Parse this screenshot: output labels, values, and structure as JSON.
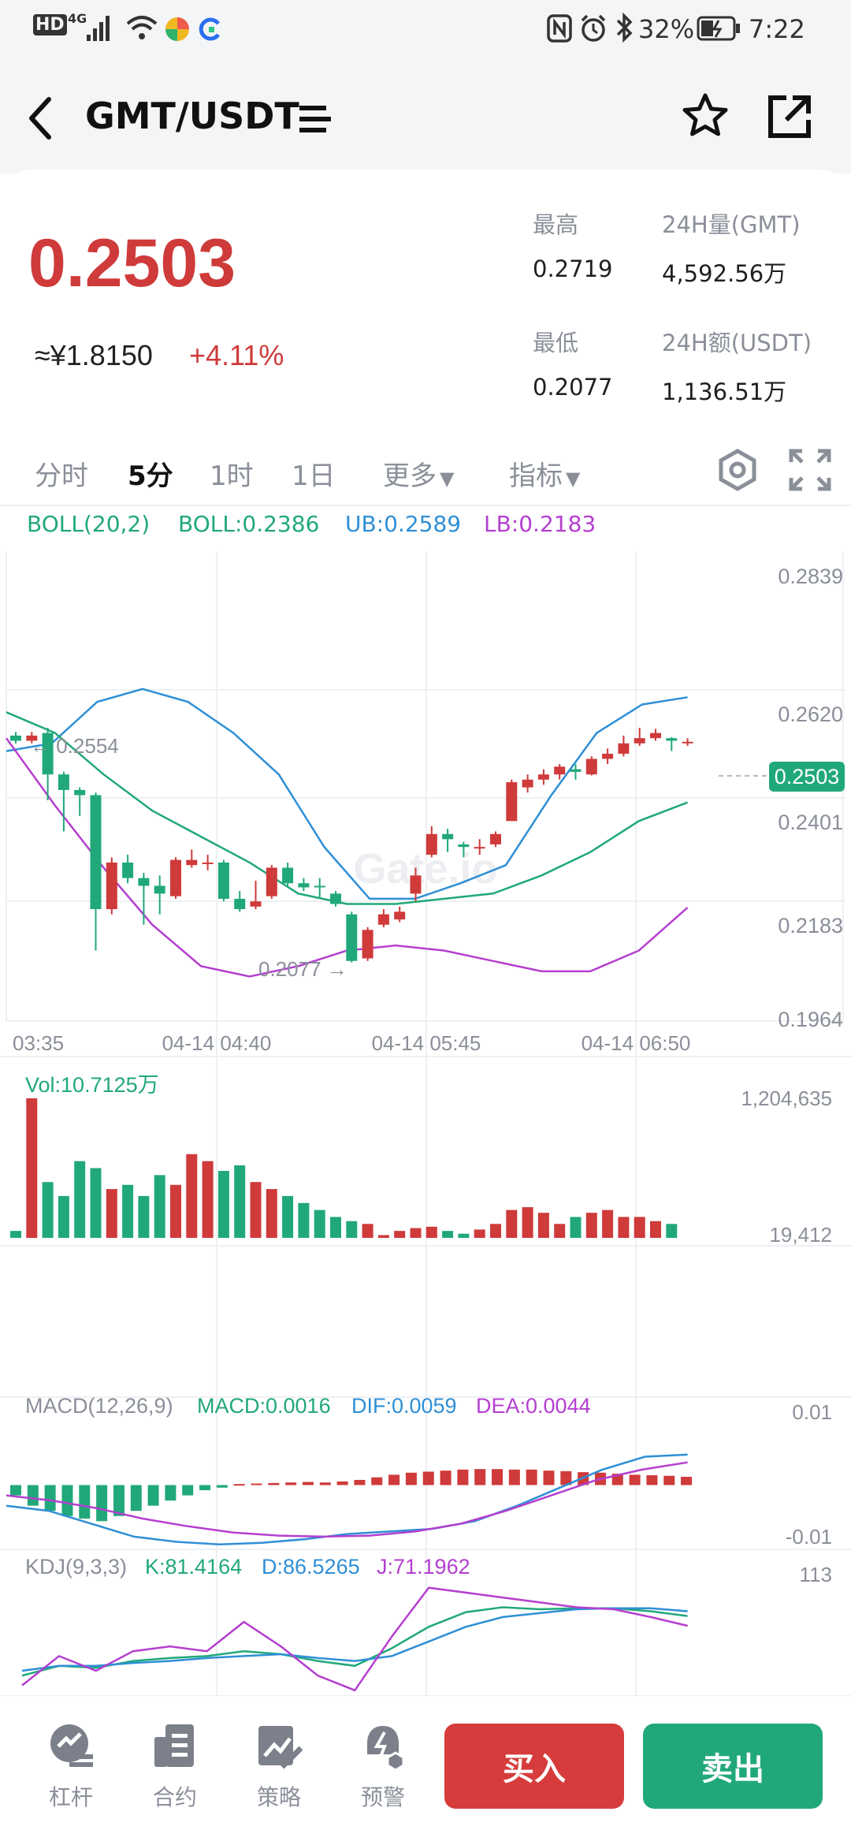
{
  "status_bar": {
    "hd": "HD",
    "network": "4G",
    "battery": "32%",
    "time": "7:22"
  },
  "header": {
    "title": "GMT/USDT"
  },
  "ticker": {
    "last_price": "0.2503",
    "cny_price": "≈¥1.8150",
    "change": "+4.11%",
    "high_label": "最高",
    "high_value": "0.2719",
    "low_label": "最低",
    "low_value": "0.2077",
    "vol_label": "24H量(GMT)",
    "vol_value": "4,592.56万",
    "amount_label": "24H额(USDT)",
    "amount_value": "1,136.51万"
  },
  "tabs": {
    "time_share": "分时",
    "m5": "5分",
    "h1": "1时",
    "d1": "1日",
    "more": "更多",
    "indicators": "指标"
  },
  "boll": {
    "name": "BOLL(20,2)",
    "mid": "BOLL:0.2386",
    "ub": "UB:0.2589",
    "lb": "LB:0.2183"
  },
  "price_axis": [
    "0.2839",
    "0.2620",
    "0.2401",
    "0.2183",
    "0.1964"
  ],
  "current_price_tag": "0.2503",
  "annotations": {
    "high": "← 0.2554",
    "low": "0.2077 →"
  },
  "watermark": "Gate.io",
  "time_axis": [
    "03:35",
    "04-14 04:40",
    "04-14 05:45",
    "04-14 06:50"
  ],
  "volume": {
    "label": "Vol:10.7125万",
    "max": "1,204,635",
    "min": "19,412"
  },
  "macd": {
    "name": "MACD(12,26,9)",
    "macd": "MACD:0.0016",
    "dif": "DIF:0.0059",
    "dea": "DEA:0.0044",
    "max": "0.01",
    "min": "-0.01"
  },
  "kdj": {
    "name": "KDJ(9,3,3)",
    "k": "K:81.4164",
    "d": "D:86.5265",
    "j": "J:71.1962",
    "max": "113"
  },
  "bottom_nav": {
    "leverage": "杠杆",
    "contract": "合约",
    "strategy": "策略",
    "alert": "预警",
    "buy": "买入",
    "sell": "卖出"
  },
  "colors": {
    "up": "#cf3a3a",
    "down": "#21a87a",
    "ub": "#2f8fd6",
    "lb": "#b43fcf",
    "mid": "#21a87a"
  },
  "chart_data": {
    "type": "candlestick",
    "interval": "5分",
    "y_range": [
      0.1964,
      0.2839
    ],
    "candles": [
      {
        "o": 0.2515,
        "c": 0.2505,
        "h": 0.2522,
        "l": 0.25
      },
      {
        "o": 0.2505,
        "c": 0.2515,
        "h": 0.2522,
        "l": 0.25
      },
      {
        "o": 0.252,
        "c": 0.244,
        "h": 0.253,
        "l": 0.239
      },
      {
        "o": 0.244,
        "c": 0.241,
        "h": 0.2445,
        "l": 0.233
      },
      {
        "o": 0.241,
        "c": 0.24,
        "h": 0.2415,
        "l": 0.236
      },
      {
        "o": 0.24,
        "c": 0.218,
        "h": 0.2405,
        "l": 0.21
      },
      {
        "o": 0.218,
        "c": 0.227,
        "h": 0.228,
        "l": 0.217
      },
      {
        "o": 0.227,
        "c": 0.224,
        "h": 0.2285,
        "l": 0.223
      },
      {
        "o": 0.224,
        "c": 0.2225,
        "h": 0.225,
        "l": 0.215
      },
      {
        "o": 0.2225,
        "c": 0.221,
        "h": 0.2245,
        "l": 0.217
      },
      {
        "o": 0.2205,
        "c": 0.2275,
        "h": 0.228,
        "l": 0.22
      },
      {
        "o": 0.2265,
        "c": 0.2275,
        "h": 0.2295,
        "l": 0.226
      },
      {
        "o": 0.227,
        "c": 0.227,
        "h": 0.2285,
        "l": 0.2255
      },
      {
        "o": 0.227,
        "c": 0.22,
        "h": 0.2275,
        "l": 0.2195
      },
      {
        "o": 0.22,
        "c": 0.218,
        "h": 0.2215,
        "l": 0.2175
      },
      {
        "o": 0.2185,
        "c": 0.2195,
        "h": 0.2235,
        "l": 0.218
      },
      {
        "o": 0.2205,
        "c": 0.226,
        "h": 0.2265,
        "l": 0.22
      },
      {
        "o": 0.226,
        "c": 0.223,
        "h": 0.227,
        "l": 0.2225
      },
      {
        "o": 0.223,
        "c": 0.2222,
        "h": 0.224,
        "l": 0.2215
      },
      {
        "o": 0.2225,
        "c": 0.2222,
        "h": 0.224,
        "l": 0.22
      },
      {
        "o": 0.221,
        "c": 0.219,
        "h": 0.2215,
        "l": 0.2185
      },
      {
        "o": 0.217,
        "c": 0.208,
        "h": 0.2175,
        "l": 0.2077
      },
      {
        "o": 0.2085,
        "c": 0.214,
        "h": 0.2145,
        "l": 0.208
      },
      {
        "o": 0.215,
        "c": 0.217,
        "h": 0.218,
        "l": 0.2145
      },
      {
        "o": 0.216,
        "c": 0.2175,
        "h": 0.2185,
        "l": 0.2155
      },
      {
        "o": 0.221,
        "c": 0.2245,
        "h": 0.226,
        "l": 0.2195
      },
      {
        "o": 0.2285,
        "c": 0.2325,
        "h": 0.234,
        "l": 0.228
      },
      {
        "o": 0.2325,
        "c": 0.2315,
        "h": 0.2335,
        "l": 0.229
      },
      {
        "o": 0.2305,
        "c": 0.23,
        "h": 0.231,
        "l": 0.228
      },
      {
        "o": 0.23,
        "c": 0.23,
        "h": 0.2315,
        "l": 0.2285
      },
      {
        "o": 0.2305,
        "c": 0.2325,
        "h": 0.233,
        "l": 0.23
      },
      {
        "o": 0.235,
        "c": 0.2425,
        "h": 0.243,
        "l": 0.235
      },
      {
        "o": 0.2415,
        "c": 0.243,
        "h": 0.244,
        "l": 0.2405
      },
      {
        "o": 0.243,
        "c": 0.244,
        "h": 0.245,
        "l": 0.242
      },
      {
        "o": 0.244,
        "c": 0.2455,
        "h": 0.246,
        "l": 0.243
      },
      {
        "o": 0.245,
        "c": 0.2445,
        "h": 0.246,
        "l": 0.243
      },
      {
        "o": 0.244,
        "c": 0.247,
        "h": 0.2475,
        "l": 0.2438
      },
      {
        "o": 0.247,
        "c": 0.248,
        "h": 0.249,
        "l": 0.246
      },
      {
        "o": 0.248,
        "c": 0.25,
        "h": 0.2515,
        "l": 0.2475
      },
      {
        "o": 0.25,
        "c": 0.251,
        "h": 0.253,
        "l": 0.2495
      },
      {
        "o": 0.251,
        "c": 0.252,
        "h": 0.2528,
        "l": 0.2505
      },
      {
        "o": 0.251,
        "c": 0.2505,
        "h": 0.2512,
        "l": 0.2485
      },
      {
        "o": 0.25,
        "c": 0.2503,
        "h": 0.251,
        "l": 0.2495
      }
    ],
    "boll_ub": [
      0.2485,
      0.25,
      0.258,
      0.2605,
      0.258,
      0.252,
      0.244,
      0.23,
      0.22,
      0.22,
      0.223,
      0.2265,
      0.24,
      0.252,
      0.2575,
      0.2589
    ],
    "boll_mid": [
      0.256,
      0.252,
      0.244,
      0.237,
      0.232,
      0.227,
      0.221,
      0.219,
      0.219,
      0.22,
      0.221,
      0.2245,
      0.229,
      0.235,
      0.2386
    ],
    "boll_lb": [
      0.251,
      0.238,
      0.226,
      0.215,
      0.207,
      0.205,
      0.207,
      0.21,
      0.211,
      0.21,
      0.208,
      0.206,
      0.206,
      0.21,
      0.2183
    ],
    "volume_bars": [
      0.05,
      1.0,
      0.4,
      0.3,
      0.55,
      0.5,
      0.35,
      0.38,
      0.3,
      0.45,
      0.38,
      0.6,
      0.55,
      0.48,
      0.52,
      0.4,
      0.35,
      0.3,
      0.25,
      0.2,
      0.15,
      0.12,
      0.1,
      0.02,
      0.05,
      0.07,
      0.08,
      0.05,
      0.03,
      0.06,
      0.1,
      0.2,
      0.22,
      0.18,
      0.1,
      0.15,
      0.18,
      0.2,
      0.15,
      0.15,
      0.12,
      0.1
    ],
    "macd_hist": [
      -0.002,
      -0.004,
      -0.005,
      -0.006,
      -0.0065,
      -0.007,
      -0.006,
      -0.005,
      -0.004,
      -0.003,
      -0.002,
      -0.001,
      -0.0005,
      0.0002,
      0.0003,
      0.0004,
      0.0005,
      0.0006,
      0.0005,
      0.0007,
      0.001,
      0.0015,
      0.002,
      0.0024,
      0.0026,
      0.0028,
      0.003,
      0.0031,
      0.0031,
      0.003,
      0.003,
      0.0028,
      0.0027,
      0.0025,
      0.0024,
      0.0022,
      0.002,
      0.0019,
      0.0018,
      0.0016
    ],
    "macd_dif": [
      -0.004,
      -0.005,
      -0.0075,
      -0.01,
      -0.011,
      -0.0115,
      -0.0112,
      -0.0105,
      -0.0095,
      -0.009,
      -0.0085,
      -0.007,
      -0.004,
      -0.0005,
      0.003,
      0.0055,
      0.0059
    ],
    "macd_dea": [
      -0.002,
      -0.003,
      -0.0045,
      -0.0065,
      -0.008,
      -0.0092,
      -0.0098,
      -0.01,
      -0.0098,
      -0.009,
      -0.0075,
      -0.005,
      -0.002,
      0.001,
      0.003,
      0.0044
    ],
    "kdj_k": [
      20,
      30,
      28,
      35,
      38,
      40,
      45,
      42,
      35,
      30,
      48,
      70,
      85,
      90,
      88,
      89,
      89,
      86,
      81
    ],
    "kdj_d": [
      25,
      30,
      30,
      33,
      35,
      38,
      40,
      42,
      38,
      35,
      40,
      55,
      70,
      80,
      84,
      88,
      89,
      89,
      86
    ],
    "kdj_j": [
      10,
      40,
      25,
      45,
      50,
      45,
      75,
      50,
      20,
      5,
      60,
      110,
      105,
      100,
      95,
      90,
      88,
      80,
      71
    ]
  }
}
